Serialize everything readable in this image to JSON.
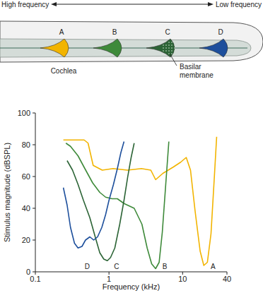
{
  "diagram": {
    "left_label": "High frequency",
    "right_label": "Low frequency",
    "cochlea_label": "Cochlea",
    "membrane_label": "Basilar membrane"
  },
  "chart_data": {
    "type": "line",
    "x_label": "Frequency (kHz)",
    "y_label": "Stimulus magnitude (dBSPL)",
    "log": "x",
    "grid": false,
    "xlim": [
      0.1,
      40
    ],
    "xticks": [
      0.1,
      1,
      10,
      40
    ],
    "ylim": [
      0,
      100
    ],
    "yticks": [
      0,
      20,
      40,
      60,
      80,
      100
    ],
    "series": [
      {
        "name": "A",
        "color": "#f2b400",
        "x": [
          0.24,
          0.46,
          0.52,
          0.61,
          0.81,
          1.14,
          1.78,
          2.76,
          3.7,
          4.3,
          5.4,
          7.5,
          9.4,
          11.2,
          12.8,
          14.8,
          17.3,
          19.4,
          21.7,
          24.3,
          27,
          29
        ],
        "values": [
          83,
          83,
          81,
          67,
          64,
          65,
          64,
          65,
          64,
          58,
          62,
          66,
          69,
          72,
          64,
          38,
          13,
          4,
          6,
          24,
          60,
          85
        ]
      },
      {
        "name": "B",
        "color": "#3e8a3a",
        "x": [
          0.26,
          0.3,
          0.38,
          0.47,
          0.6,
          0.75,
          0.9,
          1.1,
          1.3,
          1.6,
          2.2,
          2.8,
          3.3,
          3.8,
          4.3,
          4.8,
          5.3,
          5.9,
          6.5
        ],
        "values": [
          81,
          79,
          73,
          65,
          56,
          50,
          47,
          46,
          46,
          43,
          40,
          30,
          15,
          5,
          2,
          6,
          25,
          55,
          82
        ]
      },
      {
        "name": "C",
        "color": "#2c6436",
        "x": [
          0.27,
          0.32,
          0.38,
          0.45,
          0.55,
          0.65,
          0.75,
          0.85,
          0.95,
          1.05,
          1.2,
          1.4,
          1.6,
          1.8,
          2.0,
          2.2
        ],
        "values": [
          70,
          64,
          55,
          45,
          34,
          22,
          12,
          8,
          7,
          9,
          15,
          30,
          45,
          60,
          72,
          81
        ]
      },
      {
        "name": "D",
        "color": "#1d4f9c",
        "x": [
          0.24,
          0.27,
          0.3,
          0.34,
          0.38,
          0.43,
          0.48,
          0.55,
          0.62,
          0.7,
          0.8,
          0.9,
          1.0,
          1.15,
          1.3,
          1.45,
          1.6
        ],
        "values": [
          53,
          42,
          28,
          18,
          15,
          16,
          20,
          22,
          20,
          22,
          28,
          36,
          45,
          55,
          65,
          75,
          82
        ]
      }
    ]
  }
}
